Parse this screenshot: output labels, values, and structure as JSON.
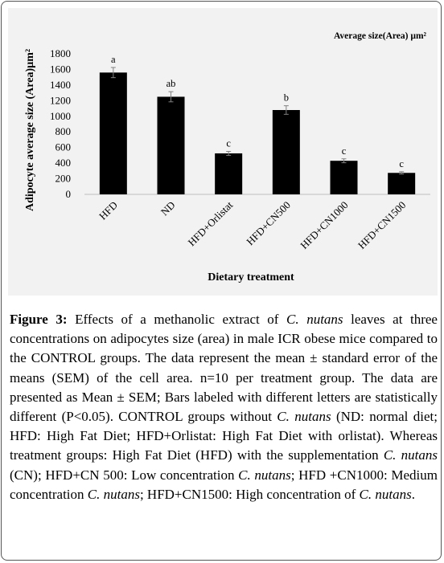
{
  "chart_data": {
    "type": "bar",
    "title": "Average  size(Area) µm²",
    "xlabel": "Dietary treatment",
    "ylabel": "Adipocyte average size (Area)µm²",
    "ylim": [
      0,
      1800
    ],
    "yticks": [
      0,
      200,
      400,
      600,
      800,
      1000,
      1200,
      1400,
      1600,
      1800
    ],
    "categories": [
      "HFD",
      "ND",
      "HFD+Orlistat",
      "HFD+CN500",
      "HFD+CN1000",
      "HFD+CN1500"
    ],
    "values": [
      1560,
      1250,
      525,
      1080,
      430,
      275
    ],
    "errors": [
      65,
      65,
      25,
      55,
      25,
      15
    ],
    "letters": [
      "a",
      "ab",
      "c",
      "b",
      "c",
      "c"
    ],
    "grid": false,
    "bar_color": "#000000"
  },
  "caption": {
    "label": "Figure 3:",
    "t1": " Effects of a methanolic extract of ",
    "i1": "C. nutans",
    "t2": " leaves at three concentrations on adipocytes size (area) in male ICR obese mice compared to the CONTROL groups. The data represent the mean ± standard error of the means (SEM) of the cell area. n=10 per treatment group. The data are presented as Mean ± SEM; Bars labeled with different letters are statistically different (P<0.05). CONTROL groups without ",
    "i2": "C. nutans",
    "t3": " (ND: normal diet; HFD: High Fat Diet; HFD+Orlistat: High Fat Diet with orlistat). Whereas treatment groups: High Fat Diet (HFD) with the supplementation ",
    "i3": "C. nutans",
    "t4": " (CN); HFD+CN 500: Low concentration ",
    "i4": "C. nutans",
    "t5": "; HFD +CN1000: Medium concentration ",
    "i5": "C. nutans",
    "t6": "; HFD+CN1500: High concentration of ",
    "i6": "C. nutans",
    "t7": "."
  }
}
